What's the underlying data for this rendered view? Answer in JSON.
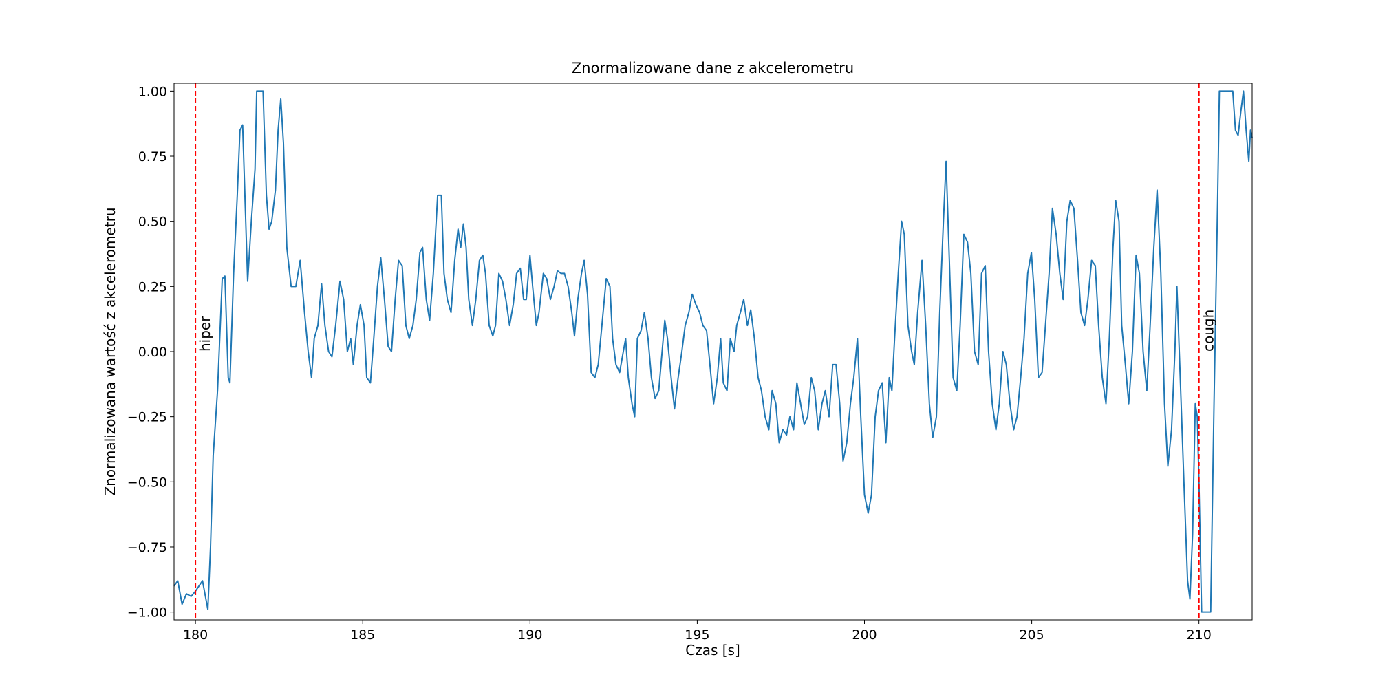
{
  "chart_data": {
    "type": "line",
    "title": "Znormalizowane dane z akcelerometru",
    "x_label": "Czas [s]",
    "y_label": "Znormalizowana wartość z akcelerometru",
    "color": "#1f77b4",
    "x": [
      179.36,
      179.47,
      179.6,
      179.73,
      179.87,
      180.0,
      180.21,
      180.37,
      180.45,
      180.53,
      180.66,
      180.8,
      180.88,
      180.98,
      181.03,
      181.14,
      181.25,
      181.33,
      181.41,
      181.56,
      181.67,
      181.78,
      181.83,
      182.02,
      182.12,
      182.2,
      182.28,
      182.39,
      182.47,
      182.55,
      182.63,
      182.73,
      182.86,
      183.0,
      183.13,
      183.26,
      183.37,
      183.47,
      183.55,
      183.66,
      183.77,
      183.87,
      183.98,
      184.08,
      184.19,
      184.32,
      184.43,
      184.54,
      184.64,
      184.72,
      184.83,
      184.93,
      185.04,
      185.12,
      185.23,
      185.33,
      185.44,
      185.54,
      185.65,
      185.76,
      185.86,
      185.97,
      186.07,
      186.18,
      186.29,
      186.39,
      186.5,
      186.6,
      186.71,
      186.79,
      186.9,
      187.0,
      187.11,
      187.24,
      187.35,
      187.43,
      187.53,
      187.64,
      187.75,
      187.85,
      187.93,
      188.01,
      188.09,
      188.17,
      188.28,
      188.38,
      188.49,
      188.59,
      188.67,
      188.78,
      188.89,
      188.97,
      189.07,
      189.18,
      189.28,
      189.39,
      189.5,
      189.6,
      189.71,
      189.81,
      189.89,
      190.0,
      190.08,
      190.19,
      190.27,
      190.4,
      190.5,
      190.61,
      190.72,
      190.82,
      190.93,
      191.03,
      191.14,
      191.25,
      191.33,
      191.43,
      191.54,
      191.62,
      191.72,
      191.83,
      191.94,
      192.04,
      192.15,
      192.28,
      192.39,
      192.47,
      192.57,
      192.68,
      192.79,
      192.86,
      192.94,
      193.05,
      193.13,
      193.21,
      193.32,
      193.42,
      193.53,
      193.63,
      193.74,
      193.85,
      193.95,
      194.03,
      194.11,
      194.22,
      194.32,
      194.43,
      194.54,
      194.64,
      194.75,
      194.85,
      194.96,
      195.07,
      195.17,
      195.28,
      195.38,
      195.49,
      195.6,
      195.7,
      195.78,
      195.89,
      195.99,
      196.1,
      196.18,
      196.29,
      196.39,
      196.5,
      196.6,
      196.71,
      196.82,
      196.92,
      197.03,
      197.14,
      197.24,
      197.35,
      197.45,
      197.56,
      197.67,
      197.77,
      197.88,
      197.98,
      198.09,
      198.2,
      198.3,
      198.41,
      198.51,
      198.62,
      198.73,
      198.83,
      198.94,
      199.05,
      199.15,
      199.26,
      199.36,
      199.47,
      199.58,
      199.68,
      199.79,
      199.89,
      200.0,
      200.11,
      200.21,
      200.32,
      200.42,
      200.53,
      200.64,
      200.74,
      200.82,
      200.9,
      201.01,
      201.11,
      201.19,
      201.3,
      201.41,
      201.49,
      201.59,
      201.72,
      201.83,
      201.94,
      202.04,
      202.15,
      202.25,
      202.36,
      202.44,
      202.55,
      202.65,
      202.76,
      202.86,
      202.97,
      203.08,
      203.18,
      203.29,
      203.4,
      203.5,
      203.61,
      203.71,
      203.82,
      203.93,
      204.03,
      204.14,
      204.24,
      204.35,
      204.46,
      204.56,
      204.67,
      204.77,
      204.88,
      204.99,
      205.09,
      205.2,
      205.31,
      205.41,
      205.52,
      205.62,
      205.73,
      205.84,
      205.94,
      206.05,
      206.15,
      206.26,
      206.37,
      206.47,
      206.58,
      206.68,
      206.79,
      206.9,
      207.0,
      207.11,
      207.22,
      207.32,
      207.43,
      207.51,
      207.61,
      207.69,
      207.8,
      207.9,
      208.01,
      208.12,
      208.22,
      208.33,
      208.44,
      208.54,
      208.65,
      208.75,
      208.86,
      208.97,
      209.07,
      209.18,
      209.28,
      209.34,
      209.44,
      209.55,
      209.66,
      209.73,
      209.81,
      209.89,
      209.95,
      210.0,
      210.08,
      210.35,
      210.45,
      210.56,
      210.61,
      211.01,
      211.09,
      211.17,
      211.25,
      211.33,
      211.41,
      211.49,
      211.54,
      211.59
    ],
    "values": [
      -0.9,
      -0.88,
      -0.97,
      -0.93,
      -0.94,
      -0.92,
      -0.88,
      -0.99,
      -0.75,
      -0.4,
      -0.15,
      0.28,
      0.29,
      -0.1,
      -0.12,
      0.3,
      0.6,
      0.85,
      0.87,
      0.27,
      0.5,
      0.7,
      1.0,
      1.0,
      0.6,
      0.47,
      0.5,
      0.62,
      0.85,
      0.97,
      0.8,
      0.4,
      0.25,
      0.25,
      0.35,
      0.15,
      0.0,
      -0.1,
      0.05,
      0.1,
      0.26,
      0.1,
      0.0,
      -0.02,
      0.1,
      0.27,
      0.2,
      0.0,
      0.05,
      -0.05,
      0.1,
      0.18,
      0.1,
      -0.1,
      -0.12,
      0.05,
      0.25,
      0.36,
      0.2,
      0.02,
      0.0,
      0.2,
      0.35,
      0.33,
      0.1,
      0.05,
      0.1,
      0.2,
      0.38,
      0.4,
      0.2,
      0.12,
      0.3,
      0.6,
      0.6,
      0.3,
      0.2,
      0.15,
      0.35,
      0.47,
      0.4,
      0.49,
      0.4,
      0.2,
      0.1,
      0.2,
      0.35,
      0.37,
      0.3,
      0.1,
      0.06,
      0.1,
      0.3,
      0.27,
      0.2,
      0.1,
      0.18,
      0.3,
      0.32,
      0.2,
      0.2,
      0.37,
      0.25,
      0.1,
      0.15,
      0.3,
      0.28,
      0.2,
      0.25,
      0.31,
      0.3,
      0.3,
      0.25,
      0.15,
      0.06,
      0.2,
      0.3,
      0.35,
      0.22,
      -0.08,
      -0.1,
      -0.05,
      0.1,
      0.28,
      0.25,
      0.05,
      -0.05,
      -0.08,
      0.0,
      0.05,
      -0.1,
      -0.2,
      -0.25,
      0.05,
      0.08,
      0.15,
      0.05,
      -0.1,
      -0.18,
      -0.15,
      0.0,
      0.12,
      0.05,
      -0.1,
      -0.22,
      -0.1,
      0.0,
      0.1,
      0.15,
      0.22,
      0.18,
      0.15,
      0.1,
      0.08,
      -0.05,
      -0.2,
      -0.1,
      0.05,
      -0.12,
      -0.15,
      0.05,
      0.0,
      0.1,
      0.15,
      0.2,
      0.1,
      0.16,
      0.05,
      -0.1,
      -0.15,
      -0.25,
      -0.3,
      -0.15,
      -0.2,
      -0.35,
      -0.3,
      -0.32,
      -0.25,
      -0.3,
      -0.12,
      -0.2,
      -0.28,
      -0.25,
      -0.1,
      -0.15,
      -0.3,
      -0.2,
      -0.15,
      -0.25,
      -0.05,
      -0.05,
      -0.2,
      -0.42,
      -0.35,
      -0.2,
      -0.1,
      0.05,
      -0.25,
      -0.55,
      -0.62,
      -0.55,
      -0.25,
      -0.15,
      -0.12,
      -0.35,
      -0.1,
      -0.15,
      0.05,
      0.3,
      0.5,
      0.45,
      0.1,
      0.0,
      -0.05,
      0.15,
      0.35,
      0.1,
      -0.2,
      -0.33,
      -0.25,
      0.15,
      0.5,
      0.73,
      0.3,
      -0.1,
      -0.15,
      0.1,
      0.45,
      0.42,
      0.3,
      0.0,
      -0.05,
      0.3,
      0.33,
      0.0,
      -0.2,
      -0.3,
      -0.2,
      0.0,
      -0.05,
      -0.2,
      -0.3,
      -0.25,
      -0.1,
      0.05,
      0.3,
      0.38,
      0.2,
      -0.1,
      -0.08,
      0.1,
      0.3,
      0.55,
      0.45,
      0.3,
      0.2,
      0.5,
      0.58,
      0.55,
      0.35,
      0.15,
      0.1,
      0.2,
      0.35,
      0.33,
      0.1,
      -0.1,
      -0.2,
      0.05,
      0.4,
      0.58,
      0.5,
      0.1,
      -0.05,
      -0.2,
      0.0,
      0.37,
      0.3,
      0.0,
      -0.15,
      0.1,
      0.4,
      0.62,
      0.3,
      -0.2,
      -0.44,
      -0.3,
      0.0,
      0.25,
      -0.1,
      -0.5,
      -0.88,
      -0.95,
      -0.7,
      -0.2,
      -0.25,
      -0.5,
      -1.0,
      -1.0,
      -0.2,
      0.6,
      1.0,
      1.0,
      0.85,
      0.83,
      0.92,
      1.0,
      0.85,
      0.73,
      0.85,
      0.82
    ],
    "xlim": [
      179.36,
      211.59
    ],
    "ylim": [
      -1.03,
      1.03
    ],
    "xticks": [
      180,
      185,
      190,
      195,
      200,
      205,
      210
    ],
    "yticks": [
      {
        "value": -1,
        "label": "−1.00"
      },
      {
        "value": -0.75,
        "label": "−0.75"
      },
      {
        "value": -0.5,
        "label": "−0.50"
      },
      {
        "value": -0.25,
        "label": "−0.25"
      },
      {
        "value": 0,
        "label": "0.00"
      },
      {
        "value": 0.25,
        "label": "0.25"
      },
      {
        "value": 0.5,
        "label": "0.50"
      },
      {
        "value": 0.75,
        "label": "0.75"
      },
      {
        "value": 1,
        "label": "1.00"
      }
    ],
    "annotations": [
      {
        "x": 180,
        "y": 0,
        "text": "hiper",
        "color": "red"
      },
      {
        "x": 210,
        "y": 0,
        "text": "cough",
        "color": "red"
      }
    ]
  }
}
